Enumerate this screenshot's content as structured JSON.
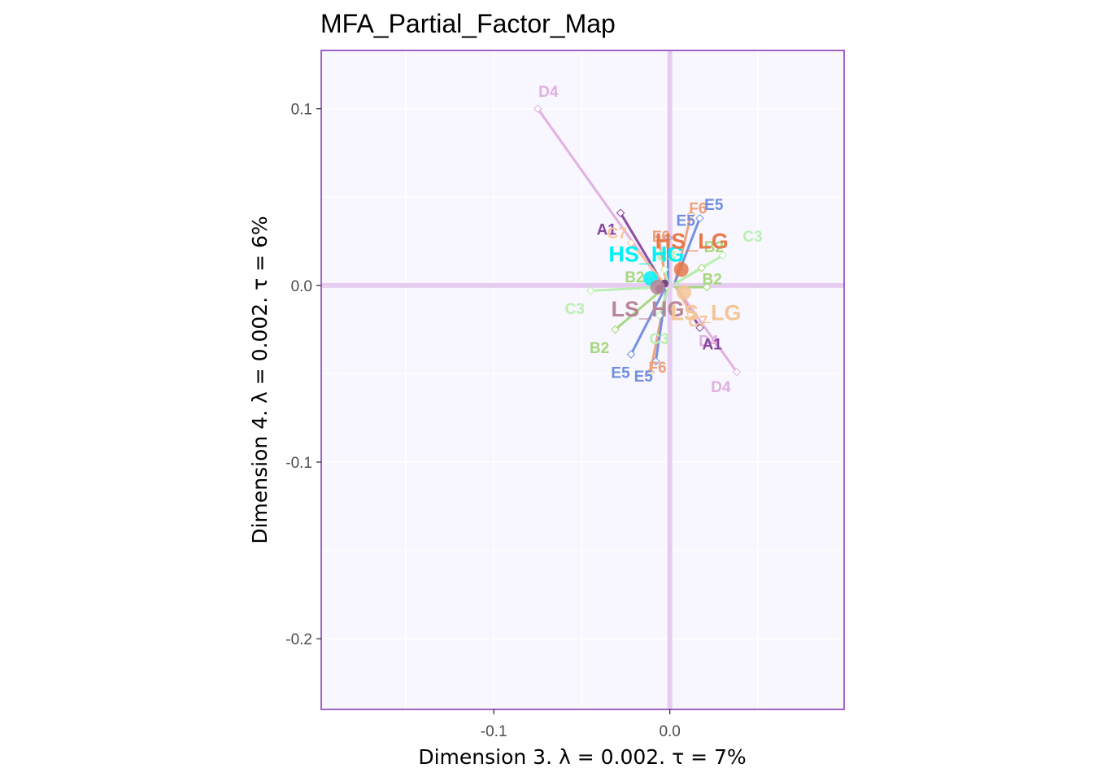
{
  "chart_data": {
    "type": "scatter",
    "title": "MFA_Partial_Factor_Map",
    "xlabel": "Dimension 3.   λ = 0.002.  τ = 7%",
    "ylabel": "Dimension 4.   λ = 0.002.  τ = 6%",
    "xlim": [
      -0.198,
      0.099
    ],
    "ylim": [
      -0.24,
      0.133
    ],
    "x_ticks": [
      -0.1,
      0.0
    ],
    "x_tick_labels": [
      "-0.1",
      "0.0"
    ],
    "y_ticks": [
      0.1,
      0.0,
      -0.1,
      -0.2
    ],
    "y_tick_labels": [
      "0.1",
      "0.0",
      "-0.1",
      "-0.2"
    ],
    "grid": true,
    "colors": {
      "panel_bg": "#f8f6fe",
      "panel_border": "#8b3fb8",
      "grid": "#ffffff",
      "zero_lines": "#e6cdf0"
    },
    "groups": [
      {
        "name": "HS_HG",
        "x": -0.011,
        "y": 0.004,
        "color": "#00f0f5"
      },
      {
        "name": "HS_LG",
        "x": 0.0065,
        "y": 0.009,
        "color": "#e8784a"
      },
      {
        "name": "LS_HG",
        "x": -0.007,
        "y": -0.001,
        "color": "#b98597"
      },
      {
        "name": "LS_LG",
        "x": 0.008,
        "y": -0.004,
        "color": "#f5c596"
      }
    ],
    "centers": [
      {
        "x": -0.003,
        "y": 0.001,
        "color": "#6d3a86"
      },
      {
        "x": -0.006,
        "y": -0.002,
        "color": "#6d3a86"
      }
    ],
    "points": [
      {
        "label": "D4",
        "x": -0.075,
        "y": 0.1,
        "tx": -0.069,
        "ty": 0.109,
        "cx": -0.005,
        "cy": 0.002,
        "color": "#e0aee0"
      },
      {
        "label": "D4",
        "x": 0.038,
        "y": -0.049,
        "tx": 0.029,
        "ty": -0.058,
        "cx": 0.005,
        "cy": -0.003,
        "color": "#e0aee0"
      },
      {
        "label": "D4",
        "x": 0.012,
        "y": -0.016,
        "tx": 0.022,
        "ty": -0.032,
        "cx": 0.005,
        "cy": -0.003,
        "color": "#e0aee0"
      },
      {
        "label": "A1",
        "x": -0.028,
        "y": 0.041,
        "tx": -0.036,
        "ty": 0.031,
        "cx": -0.004,
        "cy": 0.001,
        "color": "#86459e"
      },
      {
        "label": "A1",
        "x": 0.017,
        "y": -0.024,
        "tx": 0.024,
        "ty": -0.034,
        "cx": 0.004,
        "cy": -0.002,
        "color": "#86459e"
      },
      {
        "label": "C7",
        "x": -0.022,
        "y": 0.024,
        "tx": -0.03,
        "ty": 0.029,
        "cx": -0.003,
        "cy": 0.001,
        "color": "#f7c59a"
      },
      {
        "label": "C7",
        "x": 0.012,
        "y": -0.016,
        "tx": 0.016,
        "ty": -0.021,
        "cx": 0.004,
        "cy": -0.002,
        "color": "#f7c59a"
      },
      {
        "label": "F6",
        "x": -0.006,
        "y": 0.025,
        "tx": -0.005,
        "ty": 0.027,
        "cx": -0.002,
        "cy": 0.001,
        "color": "#f0a078"
      },
      {
        "label": "F6",
        "x": 0.012,
        "y": 0.04,
        "tx": 0.016,
        "ty": 0.043,
        "cx": 0.003,
        "cy": 0.002,
        "color": "#f0a078"
      },
      {
        "label": "F6",
        "x": -0.011,
        "y": -0.049,
        "tx": -0.007,
        "ty": -0.047,
        "cx": -0.002,
        "cy": -0.003,
        "color": "#f0a078"
      },
      {
        "label": "E5",
        "x": -0.001,
        "y": 0.027,
        "tx": 0.009,
        "ty": 0.036,
        "cx": -0.001,
        "cy": 0.001,
        "color": "#6e8de0"
      },
      {
        "label": "E5",
        "x": 0.017,
        "y": 0.038,
        "tx": 0.025,
        "ty": 0.045,
        "cx": 0.003,
        "cy": 0.002,
        "color": "#6e8de0"
      },
      {
        "label": "E5",
        "x": -0.022,
        "y": -0.039,
        "tx": -0.028,
        "ty": -0.05,
        "cx": -0.003,
        "cy": -0.002,
        "color": "#6e8de0"
      },
      {
        "label": "E5",
        "x": -0.008,
        "y": -0.043,
        "tx": -0.015,
        "ty": -0.052,
        "cx": -0.002,
        "cy": -0.003,
        "color": "#6e8de0"
      },
      {
        "label": "B2",
        "x": 0.018,
        "y": 0.01,
        "tx": 0.025,
        "ty": 0.021,
        "cx": 0.003,
        "cy": 0.001,
        "color": "#a5d77c"
      },
      {
        "label": "B2",
        "x": -0.031,
        "y": -0.025,
        "tx": -0.04,
        "ty": -0.036,
        "cx": -0.004,
        "cy": -0.002,
        "color": "#a5d77c"
      },
      {
        "label": "B2",
        "x": 0.021,
        "y": -0.001,
        "tx": 0.024,
        "ty": 0.003,
        "cx": 0.003,
        "cy": -0.001,
        "color": "#a5d77c"
      },
      {
        "label": "B2",
        "x": -0.009,
        "y": 0.003,
        "tx": -0.02,
        "ty": 0.004,
        "cx": -0.002,
        "cy": 0.001,
        "color": "#a5d77c"
      },
      {
        "label": "C3",
        "x": 0.03,
        "y": 0.017,
        "tx": 0.047,
        "ty": 0.027,
        "cx": 0.003,
        "cy": 0.001,
        "color": "#b8f0b0"
      },
      {
        "label": "C3",
        "x": -0.045,
        "y": -0.003,
        "tx": -0.054,
        "ty": -0.014,
        "cx": -0.005,
        "cy": -0.001,
        "color": "#b8f0b0"
      },
      {
        "label": "C3",
        "x": -0.006,
        "y": -0.017,
        "tx": -0.006,
        "ty": -0.031,
        "cx": -0.001,
        "cy": -0.002,
        "color": "#b8f0b0"
      },
      {
        "label": "C3",
        "x": -0.003,
        "y": 0.009,
        "tx": -0.002,
        "ty": 0.016,
        "cx": -0.001,
        "cy": 0.001,
        "color": "#b8f0b0"
      }
    ]
  }
}
